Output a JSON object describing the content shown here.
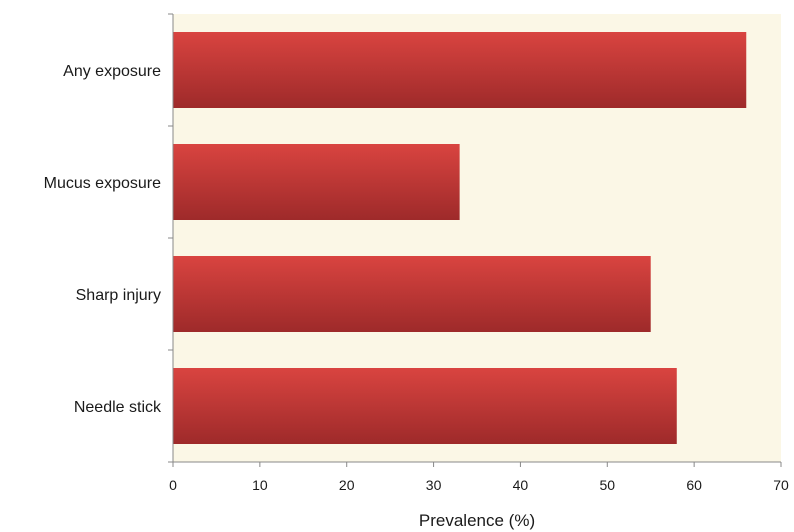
{
  "chart_data": {
    "type": "bar",
    "orientation": "horizontal",
    "title": "",
    "xlabel": "Prevalence (%)",
    "ylabel": "",
    "categories": [
      "Any exposure",
      "Mucus exposure",
      "Sharp injury",
      "Needle stick"
    ],
    "values": [
      66,
      33,
      55,
      58
    ],
    "xlim": [
      0,
      70
    ],
    "xticks": [
      "0",
      "10",
      "20",
      "30",
      "40",
      "50",
      "60",
      "70"
    ],
    "grid": false,
    "legend": "none"
  },
  "colors": {
    "plot_background": "#fbf7e6",
    "bar_light": "#d94440",
    "bar_dark": "#9e2a2a",
    "axis": "#888888"
  }
}
